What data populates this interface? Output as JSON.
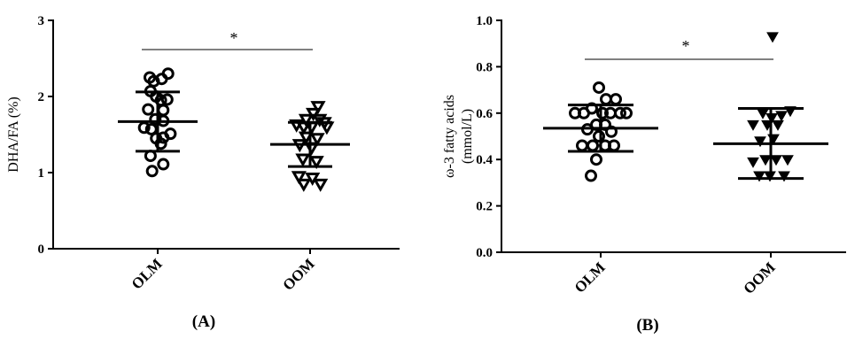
{
  "chart_data": [
    {
      "type": "scatter",
      "panel_label": "(A)",
      "title": "",
      "xlabel": "",
      "ylabel": "DHA/FA (%)",
      "ylim": [
        0,
        3
      ],
      "yticks": [
        "0",
        "1",
        "2",
        "3"
      ],
      "categories": [
        "OLM",
        "OOM"
      ],
      "series": [
        {
          "category": "OLM",
          "marker": "open-circle",
          "points": [
            {
              "x": -0.1,
              "y": 2.25
            },
            {
              "x": -0.05,
              "y": 2.2
            },
            {
              "x": 0.05,
              "y": 2.23
            },
            {
              "x": 0.13,
              "y": 2.3
            },
            {
              "x": -0.09,
              "y": 2.07
            },
            {
              "x": -0.02,
              "y": 2.0
            },
            {
              "x": 0.04,
              "y": 1.95
            },
            {
              "x": 0.12,
              "y": 1.96
            },
            {
              "x": -0.12,
              "y": 1.83
            },
            {
              "x": 0.07,
              "y": 1.82
            },
            {
              "x": -0.03,
              "y": 1.7
            },
            {
              "x": 0.07,
              "y": 1.68
            },
            {
              "x": -0.17,
              "y": 1.59
            },
            {
              "x": -0.08,
              "y": 1.57
            },
            {
              "x": 0.16,
              "y": 1.51
            },
            {
              "x": -0.02,
              "y": 1.45
            },
            {
              "x": 0.07,
              "y": 1.46
            },
            {
              "x": 0.04,
              "y": 1.38
            },
            {
              "x": -0.09,
              "y": 1.22
            },
            {
              "x": 0.07,
              "y": 1.11
            },
            {
              "x": -0.07,
              "y": 1.02
            }
          ],
          "mean": 1.67,
          "sd_lower": 1.28,
          "sd_upper": 2.06
        },
        {
          "category": "OOM",
          "marker": "open-triangle-down",
          "points": [
            {
              "x": 0.1,
              "y": 1.87
            },
            {
              "x": 0.04,
              "y": 1.78
            },
            {
              "x": -0.05,
              "y": 1.7
            },
            {
              "x": 0.12,
              "y": 1.7
            },
            {
              "x": 0.18,
              "y": 1.66
            },
            {
              "x": -0.17,
              "y": 1.63
            },
            {
              "x": -0.08,
              "y": 1.6
            },
            {
              "x": 0.02,
              "y": 1.6
            },
            {
              "x": 0.21,
              "y": 1.6
            },
            {
              "x": -0.05,
              "y": 1.47
            },
            {
              "x": 0.09,
              "y": 1.45
            },
            {
              "x": -0.13,
              "y": 1.37
            },
            {
              "x": 0.02,
              "y": 1.33
            },
            {
              "x": -0.09,
              "y": 1.18
            },
            {
              "x": 0.08,
              "y": 1.15
            },
            {
              "x": -0.14,
              "y": 0.95
            },
            {
              "x": 0.03,
              "y": 0.93
            },
            {
              "x": -0.08,
              "y": 0.85
            },
            {
              "x": 0.13,
              "y": 0.85
            }
          ],
          "mean": 1.37,
          "sd_lower": 1.08,
          "sd_upper": 1.66
        }
      ],
      "annotations": [
        {
          "text": "*",
          "between": [
            "OLM",
            "OOM"
          ]
        }
      ],
      "grid": false
    },
    {
      "type": "scatter",
      "panel_label": "(B)",
      "title": "",
      "xlabel": "",
      "ylabel": "ω-3 fatty acids (mmol/L)",
      "ylabel_lines": [
        "ω-3 fatty acids",
        "(mmol/L)"
      ],
      "ylim": [
        0,
        1.0
      ],
      "yticks": [
        "0.0",
        "0.2",
        "0.4",
        "0.6",
        "0.8",
        "1.0"
      ],
      "categories": [
        "OLM",
        "OOM"
      ],
      "series": [
        {
          "category": "OLM",
          "marker": "open-circle",
          "points": [
            {
              "x": -0.02,
              "y": 0.71
            },
            {
              "x": 0.06,
              "y": 0.66
            },
            {
              "x": 0.17,
              "y": 0.66
            },
            {
              "x": -0.1,
              "y": 0.62
            },
            {
              "x": -0.29,
              "y": 0.6
            },
            {
              "x": -0.19,
              "y": 0.6
            },
            {
              "x": 0.02,
              "y": 0.6
            },
            {
              "x": 0.11,
              "y": 0.6
            },
            {
              "x": 0.22,
              "y": 0.6
            },
            {
              "x": 0.29,
              "y": 0.6
            },
            {
              "x": -0.05,
              "y": 0.55
            },
            {
              "x": 0.05,
              "y": 0.55
            },
            {
              "x": -0.15,
              "y": 0.53
            },
            {
              "x": 0.12,
              "y": 0.52
            },
            {
              "x": -0.02,
              "y": 0.5
            },
            {
              "x": -0.21,
              "y": 0.46
            },
            {
              "x": -0.09,
              "y": 0.46
            },
            {
              "x": 0.05,
              "y": 0.46
            },
            {
              "x": 0.15,
              "y": 0.46
            },
            {
              "x": -0.05,
              "y": 0.4
            },
            {
              "x": -0.11,
              "y": 0.33
            }
          ],
          "mean": 0.535,
          "sd_lower": 0.435,
          "sd_upper": 0.635
        },
        {
          "category": "OOM",
          "marker": "filled-triangle-down",
          "points": [
            {
              "x": 0.02,
              "y": 0.93
            },
            {
              "x": 0.22,
              "y": 0.61
            },
            {
              "x": -0.09,
              "y": 0.6
            },
            {
              "x": 0.12,
              "y": 0.59
            },
            {
              "x": 0.01,
              "y": 0.58
            },
            {
              "x": -0.2,
              "y": 0.55
            },
            {
              "x": -0.04,
              "y": 0.55
            },
            {
              "x": 0.08,
              "y": 0.55
            },
            {
              "x": -0.12,
              "y": 0.48
            },
            {
              "x": 0.03,
              "y": 0.49
            },
            {
              "x": -0.2,
              "y": 0.39
            },
            {
              "x": -0.06,
              "y": 0.4
            },
            {
              "x": 0.06,
              "y": 0.4
            },
            {
              "x": 0.19,
              "y": 0.4
            },
            {
              "x": -0.13,
              "y": 0.33
            },
            {
              "x": -0.01,
              "y": 0.33
            },
            {
              "x": 0.15,
              "y": 0.33
            }
          ],
          "mean": 0.468,
          "sd_lower": 0.318,
          "sd_upper": 0.62
        }
      ],
      "annotations": [
        {
          "text": "*",
          "between": [
            "OLM",
            "OOM"
          ]
        }
      ],
      "grid": false
    }
  ]
}
